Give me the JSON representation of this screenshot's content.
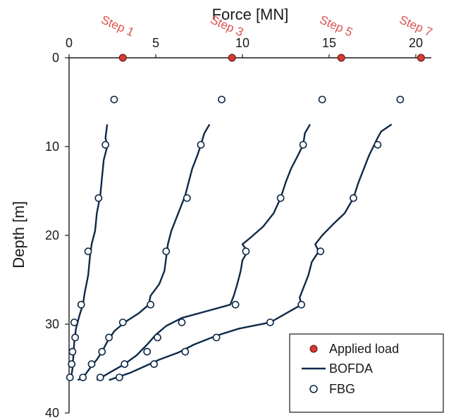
{
  "colors": {
    "applied_load": "#d63a32",
    "bofda": "#0f2a48",
    "fbg_edge": "#0f2a48",
    "step_text": "#d9534f",
    "axis": "#1a1a1a"
  },
  "chart_data": {
    "type": "line",
    "xlabel": "Force [MN]",
    "ylabel": "Depth [m]",
    "xlim": [
      0,
      21
    ],
    "ylim": [
      0,
      40
    ],
    "x_ticks": [
      "0",
      "5",
      "10",
      "15",
      "20"
    ],
    "y_ticks": [
      "0",
      "10",
      "20",
      "30",
      "40"
    ],
    "x_axis_position": "top",
    "y_inverted": true,
    "grid": false,
    "legend_position": "bottom-right",
    "legend": [
      "Applied load",
      "BOFDA",
      "FBG"
    ],
    "steps": [
      {
        "label": "Step 1",
        "applied_load": 3.1
      },
      {
        "label": "Step 3",
        "applied_load": 9.4
      },
      {
        "label": "Step 5",
        "applied_load": 15.7
      },
      {
        "label": "Step 7",
        "applied_load": 20.3
      }
    ],
    "series": [
      {
        "name": "Applied load",
        "kind": "marker",
        "points": [
          [
            3.1,
            0
          ],
          [
            9.4,
            0
          ],
          [
            15.7,
            0
          ],
          [
            20.3,
            0
          ]
        ]
      },
      {
        "name": "FBG",
        "kind": "marker",
        "groups": [
          [
            [
              2.6,
              4.7
            ],
            [
              2.1,
              9.8
            ],
            [
              1.7,
              15.8
            ],
            [
              1.1,
              21.8
            ],
            [
              0.7,
              27.8
            ],
            [
              0.3,
              29.8
            ],
            [
              0.35,
              31.5
            ],
            [
              0.2,
              33.1
            ],
            [
              0.15,
              34.5
            ],
            [
              0.05,
              36.0
            ]
          ],
          [
            [
              8.8,
              4.7
            ],
            [
              7.6,
              9.8
            ],
            [
              6.8,
              15.8
            ],
            [
              5.6,
              21.8
            ],
            [
              4.7,
              27.8
            ],
            [
              3.1,
              29.8
            ],
            [
              2.3,
              31.5
            ],
            [
              1.9,
              33.1
            ],
            [
              1.3,
              34.5
            ],
            [
              0.8,
              36.0
            ]
          ],
          [
            [
              14.6,
              4.7
            ],
            [
              13.5,
              9.8
            ],
            [
              12.2,
              15.8
            ],
            [
              10.2,
              21.8
            ],
            [
              9.6,
              27.8
            ],
            [
              6.5,
              29.8
            ],
            [
              5.1,
              31.5
            ],
            [
              4.5,
              33.1
            ],
            [
              3.2,
              34.5
            ],
            [
              1.8,
              36.0
            ]
          ],
          [
            [
              19.1,
              4.7
            ],
            [
              17.8,
              9.8
            ],
            [
              16.4,
              15.8
            ],
            [
              14.5,
              21.8
            ],
            [
              13.4,
              27.8
            ],
            [
              11.6,
              29.8
            ],
            [
              8.5,
              31.5
            ],
            [
              6.7,
              33.1
            ],
            [
              4.9,
              34.5
            ],
            [
              2.9,
              36.0
            ]
          ]
        ]
      },
      {
        "name": "BOFDA",
        "kind": "line",
        "groups": [
          [
            [
              2.2,
              7.5
            ],
            [
              2.1,
              9.0
            ],
            [
              2.2,
              10.0
            ],
            [
              2.0,
              11.5
            ],
            [
              1.9,
              13.5
            ],
            [
              1.8,
              15.5
            ],
            [
              1.6,
              17.5
            ],
            [
              1.5,
              19.5
            ],
            [
              1.3,
              21.0
            ],
            [
              1.2,
              22.5
            ],
            [
              1.1,
              24.5
            ],
            [
              0.9,
              26.5
            ],
            [
              0.8,
              27.8
            ],
            [
              0.6,
              29.0
            ],
            [
              0.4,
              30.5
            ],
            [
              0.3,
              32.0
            ],
            [
              0.25,
              33.5
            ],
            [
              0.2,
              35.0
            ],
            [
              0.1,
              36.2
            ]
          ],
          [
            [
              8.1,
              7.5
            ],
            [
              7.8,
              8.5
            ],
            [
              7.6,
              9.8
            ],
            [
              7.4,
              11.0
            ],
            [
              7.1,
              12.5
            ],
            [
              6.9,
              14.0
            ],
            [
              6.7,
              15.5
            ],
            [
              6.5,
              16.5
            ],
            [
              6.2,
              18.0
            ],
            [
              5.9,
              19.5
            ],
            [
              5.7,
              21.0
            ],
            [
              5.6,
              22.5
            ],
            [
              5.5,
              24.0
            ],
            [
              5.2,
              25.5
            ],
            [
              4.7,
              26.8
            ],
            [
              4.6,
              27.8
            ],
            [
              4.0,
              28.8
            ],
            [
              3.2,
              29.8
            ],
            [
              2.6,
              30.8
            ],
            [
              2.2,
              32.0
            ],
            [
              1.9,
              33.1
            ],
            [
              1.6,
              34.0
            ],
            [
              1.3,
              34.7
            ],
            [
              1.0,
              35.5
            ],
            [
              0.8,
              36.0
            ],
            [
              0.5,
              36.3
            ]
          ],
          [
            [
              13.9,
              7.5
            ],
            [
              13.6,
              8.5
            ],
            [
              13.5,
              9.8
            ],
            [
              13.2,
              11.0
            ],
            [
              12.8,
              12.5
            ],
            [
              12.5,
              14.0
            ],
            [
              12.2,
              15.8
            ],
            [
              11.8,
              17.5
            ],
            [
              11.2,
              19.0
            ],
            [
              10.5,
              20.2
            ],
            [
              10.0,
              21.0
            ],
            [
              10.3,
              21.8
            ],
            [
              10.0,
              22.8
            ],
            [
              9.9,
              24.0
            ],
            [
              9.7,
              25.5
            ],
            [
              9.5,
              26.8
            ],
            [
              9.3,
              27.8
            ],
            [
              8.0,
              28.5
            ],
            [
              6.5,
              29.3
            ],
            [
              5.6,
              30.2
            ],
            [
              5.0,
              31.2
            ],
            [
              4.5,
              32.3
            ],
            [
              3.9,
              33.5
            ],
            [
              3.2,
              34.5
            ],
            [
              2.3,
              35.5
            ],
            [
              1.6,
              36.3
            ]
          ],
          [
            [
              18.6,
              7.5
            ],
            [
              18.0,
              8.3
            ],
            [
              17.8,
              9.0
            ],
            [
              17.6,
              9.8
            ],
            [
              17.3,
              11.0
            ],
            [
              17.0,
              12.5
            ],
            [
              16.7,
              14.0
            ],
            [
              16.4,
              15.8
            ],
            [
              15.9,
              17.5
            ],
            [
              15.2,
              18.8
            ],
            [
              14.6,
              20.0
            ],
            [
              14.2,
              21.0
            ],
            [
              14.4,
              21.8
            ],
            [
              14.0,
              23.0
            ],
            [
              13.8,
              24.5
            ],
            [
              13.5,
              26.0
            ],
            [
              13.3,
              27.0
            ],
            [
              13.4,
              27.8
            ],
            [
              12.5,
              28.8
            ],
            [
              11.6,
              29.8
            ],
            [
              9.8,
              30.5
            ],
            [
              8.5,
              31.3
            ],
            [
              7.2,
              32.3
            ],
            [
              6.3,
              33.2
            ],
            [
              5.2,
              34.0
            ],
            [
              4.3,
              34.8
            ],
            [
              3.5,
              35.5
            ],
            [
              2.3,
              36.3
            ]
          ]
        ]
      }
    ]
  }
}
